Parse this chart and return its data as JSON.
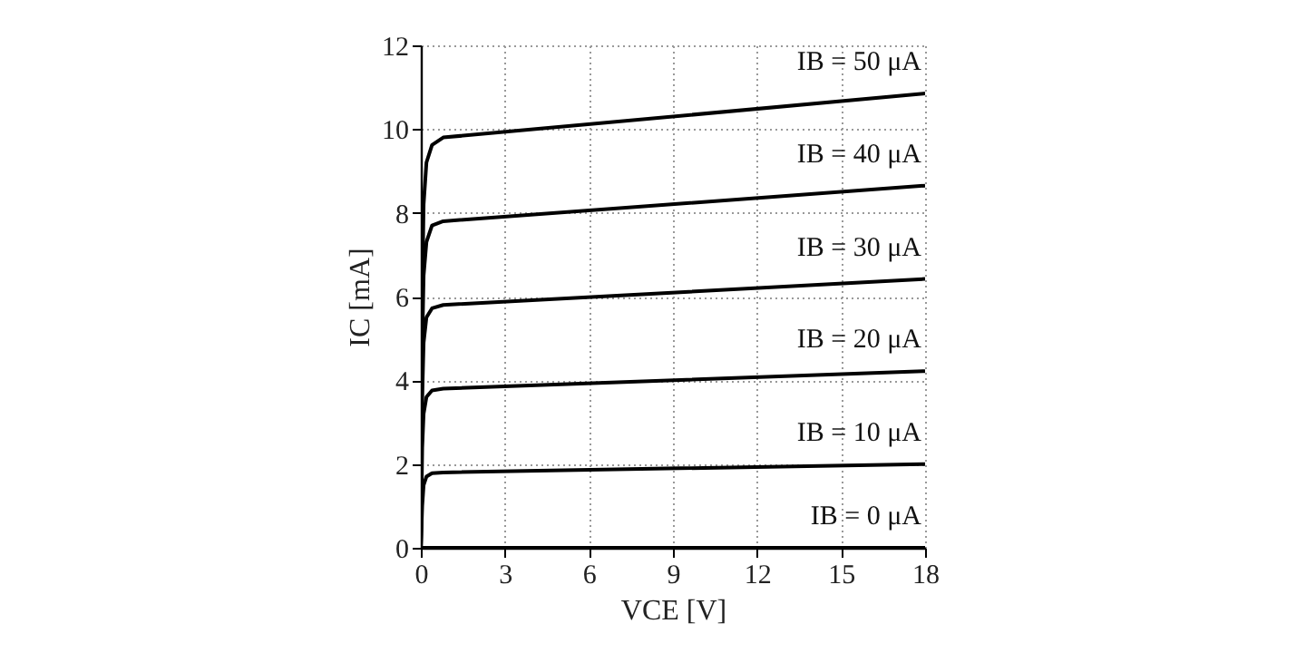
{
  "chart_data": {
    "type": "line",
    "xlabel": "VCE [V]",
    "ylabel": "IC [mA]",
    "xlim": [
      0,
      18
    ],
    "ylim": [
      0,
      12
    ],
    "xticks": [
      0,
      3,
      6,
      9,
      12,
      15,
      18
    ],
    "yticks": [
      0,
      2,
      4,
      6,
      8,
      10,
      12
    ],
    "grid": true,
    "line_style": "solid",
    "marker": "none",
    "series": [
      {
        "name": "IB = 0 μA",
        "color": "#000000",
        "x": [
          0,
          18
        ],
        "values": [
          0,
          0
        ]
      },
      {
        "name": "IB = 10 μA",
        "color": "#000000",
        "x": [
          0,
          0.05,
          0.1,
          0.2,
          0.4,
          0.8,
          18
        ],
        "values": [
          0,
          1.0,
          1.5,
          1.7,
          1.78,
          1.8,
          2.0
        ]
      },
      {
        "name": "IB = 20 μA",
        "color": "#000000",
        "x": [
          0,
          0.05,
          0.1,
          0.2,
          0.4,
          0.8,
          18
        ],
        "values": [
          0,
          2.4,
          3.2,
          3.6,
          3.76,
          3.8,
          4.22
        ]
      },
      {
        "name": "IB = 30 μA",
        "color": "#000000",
        "x": [
          0,
          0.05,
          0.1,
          0.2,
          0.4,
          0.8,
          18
        ],
        "values": [
          0,
          3.6,
          4.9,
          5.5,
          5.72,
          5.8,
          6.42
        ]
      },
      {
        "name": "IB = 40 μA",
        "color": "#000000",
        "x": [
          0,
          0.05,
          0.1,
          0.2,
          0.4,
          0.8,
          18
        ],
        "values": [
          0,
          4.8,
          6.5,
          7.3,
          7.7,
          7.8,
          8.65
        ]
      },
      {
        "name": "IB = 50 μA",
        "color": "#000000",
        "x": [
          0,
          0.05,
          0.1,
          0.2,
          0.4,
          0.8,
          18
        ],
        "values": [
          0,
          6.0,
          8.2,
          9.2,
          9.62,
          9.8,
          10.85
        ]
      }
    ]
  }
}
